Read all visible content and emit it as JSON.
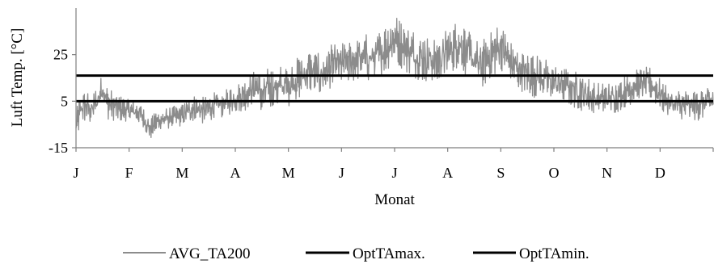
{
  "chart_data": {
    "type": "line",
    "title": "",
    "xlabel": "Monat",
    "ylabel": "Luft Temp. [°C]",
    "ylim": [
      -15,
      45
    ],
    "yticks": [
      -15,
      5,
      25
    ],
    "categories": [
      "J",
      "F",
      "M",
      "A",
      "M",
      "J",
      "J",
      "A",
      "S",
      "O",
      "N",
      "D"
    ],
    "xlim": [
      0,
      12
    ],
    "grid": false,
    "legend": "bottom",
    "series": [
      {
        "name": "AVG_TA200",
        "color": "#8c8c8c",
        "style": "noisy-daily",
        "x": [
          0.0,
          0.1,
          0.2,
          0.3,
          0.4,
          0.5,
          0.6,
          0.8,
          1.0,
          1.2,
          1.4,
          1.5,
          1.6,
          1.8,
          2.0,
          2.2,
          2.4,
          2.6,
          2.8,
          3.0,
          3.2,
          3.4,
          3.5,
          3.6,
          3.8,
          4.0,
          4.2,
          4.4,
          4.6,
          4.8,
          5.0,
          5.2,
          5.4,
          5.6,
          5.8,
          6.0,
          6.2,
          6.4,
          6.6,
          6.8,
          7.0,
          7.2,
          7.4,
          7.6,
          7.8,
          8.0,
          8.2,
          8.4,
          8.6,
          8.8,
          9.0,
          9.2,
          9.4,
          9.6,
          9.8,
          10.0,
          10.2,
          10.4,
          10.6,
          10.8,
          11.0,
          11.2,
          11.4,
          11.6,
          11.8,
          12.0
        ],
        "values": [
          -6,
          2,
          3,
          1,
          5,
          11,
          4,
          2,
          1,
          0,
          -7,
          -4,
          -3,
          -2,
          -1,
          2,
          1,
          3,
          4,
          6,
          8,
          12,
          7,
          10,
          11,
          12,
          15,
          18,
          16,
          20,
          21,
          22,
          24,
          23,
          27,
          32,
          28,
          25,
          23,
          22,
          26,
          30,
          25,
          20,
          24,
          29,
          21,
          18,
          16,
          15,
          13,
          12,
          10,
          8,
          6,
          6,
          7,
          10,
          12,
          13,
          8,
          4,
          3,
          3,
          4,
          5
        ],
        "amplitude": [
          6,
          6,
          6,
          6,
          6,
          5,
          6,
          5,
          4,
          4,
          4,
          4,
          4,
          4,
          4,
          5,
          5,
          5,
          5,
          5,
          6,
          6,
          7,
          8,
          8,
          8,
          8,
          8,
          8,
          8,
          8,
          8,
          9,
          9,
          9,
          9,
          9,
          9,
          9,
          9,
          9,
          9,
          9,
          9,
          9,
          9,
          8,
          8,
          8,
          8,
          7,
          7,
          7,
          7,
          6,
          6,
          6,
          6,
          6,
          6,
          6,
          6,
          6,
          6,
          6,
          6
        ]
      },
      {
        "name": "OptTAmax.",
        "color": "#000000",
        "x": [
          0,
          12
        ],
        "values": [
          16,
          16
        ]
      },
      {
        "name": "OptTAmin.",
        "color": "#000000",
        "x": [
          0,
          12
        ],
        "values": [
          5,
          5
        ]
      }
    ]
  }
}
